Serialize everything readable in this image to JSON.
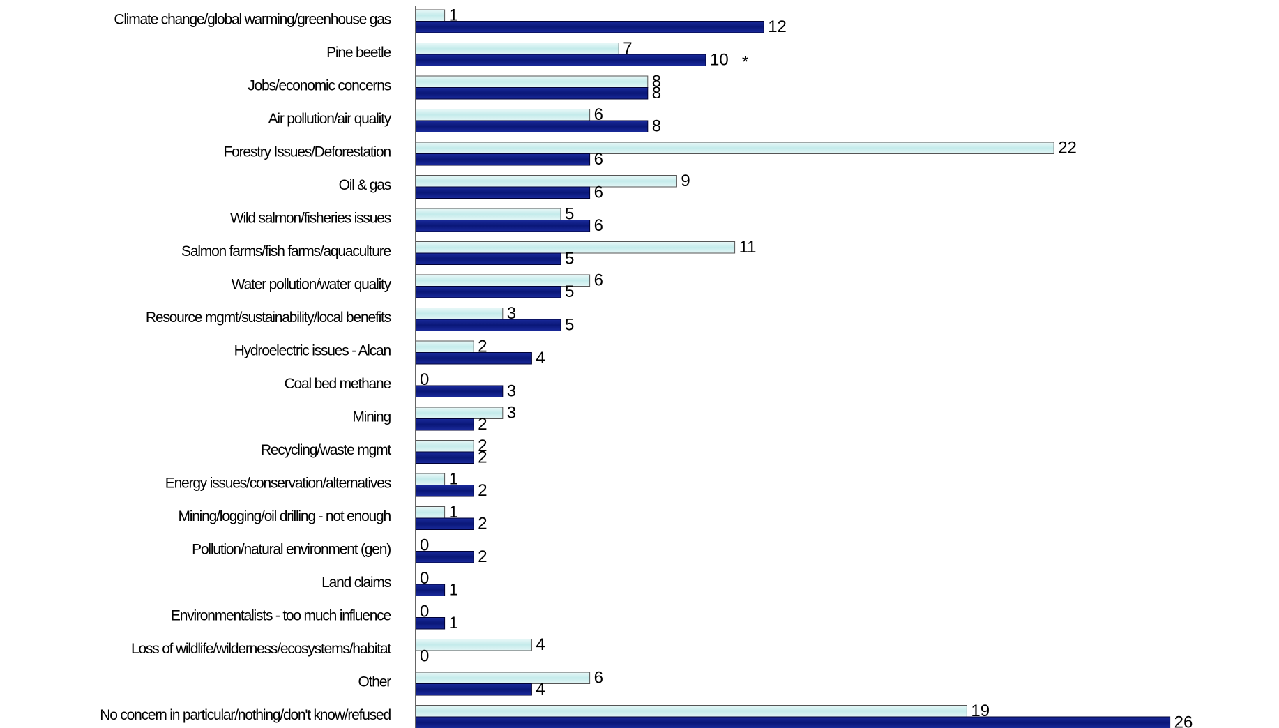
{
  "chart_data": {
    "type": "bar",
    "orientation": "horizontal",
    "xlabel": "%",
    "xlim": [
      0,
      30
    ],
    "grid": false,
    "legend": "none",
    "categories": [
      "Climate change/global warming/greenhouse gas",
      "Pine beetle",
      "Jobs/economic concerns",
      "Air pollution/air quality",
      "Forestry Issues/Deforestation",
      "Oil & gas",
      "Wild salmon/fisheries issues",
      "Salmon farms/fish farms/aquaculture",
      "Water pollution/water quality",
      "Resource mgmt/sustainability/local benefits",
      "Hydroelectric issues - Alcan",
      "Coal bed methane",
      "Mining",
      "Recycling/waste mgmt",
      "Energy issues/conservation/alternatives",
      "Mining/logging/oil drilling - not enough",
      "Pollution/natural environment (gen)",
      "Land claims",
      "Environmentalists - too much influence",
      "Loss of wildlife/wilderness/ecosystems/habitat",
      "Other",
      "No concern in particular/nothing/don't know/refused"
    ],
    "series": [
      {
        "color": "#cdeeee",
        "values": [
          1,
          7,
          8,
          6,
          22,
          9,
          5,
          11,
          6,
          3,
          2,
          0,
          3,
          2,
          1,
          1,
          0,
          0,
          0,
          4,
          6,
          19
        ]
      },
      {
        "color": "#0a1a7a",
        "values": [
          12,
          10,
          8,
          8,
          6,
          6,
          6,
          5,
          5,
          5,
          4,
          3,
          2,
          2,
          2,
          2,
          2,
          1,
          1,
          0,
          4,
          26
        ]
      }
    ],
    "annotations": [
      {
        "category": "Pine beetle",
        "series_index": 1,
        "text": "*"
      }
    ]
  }
}
